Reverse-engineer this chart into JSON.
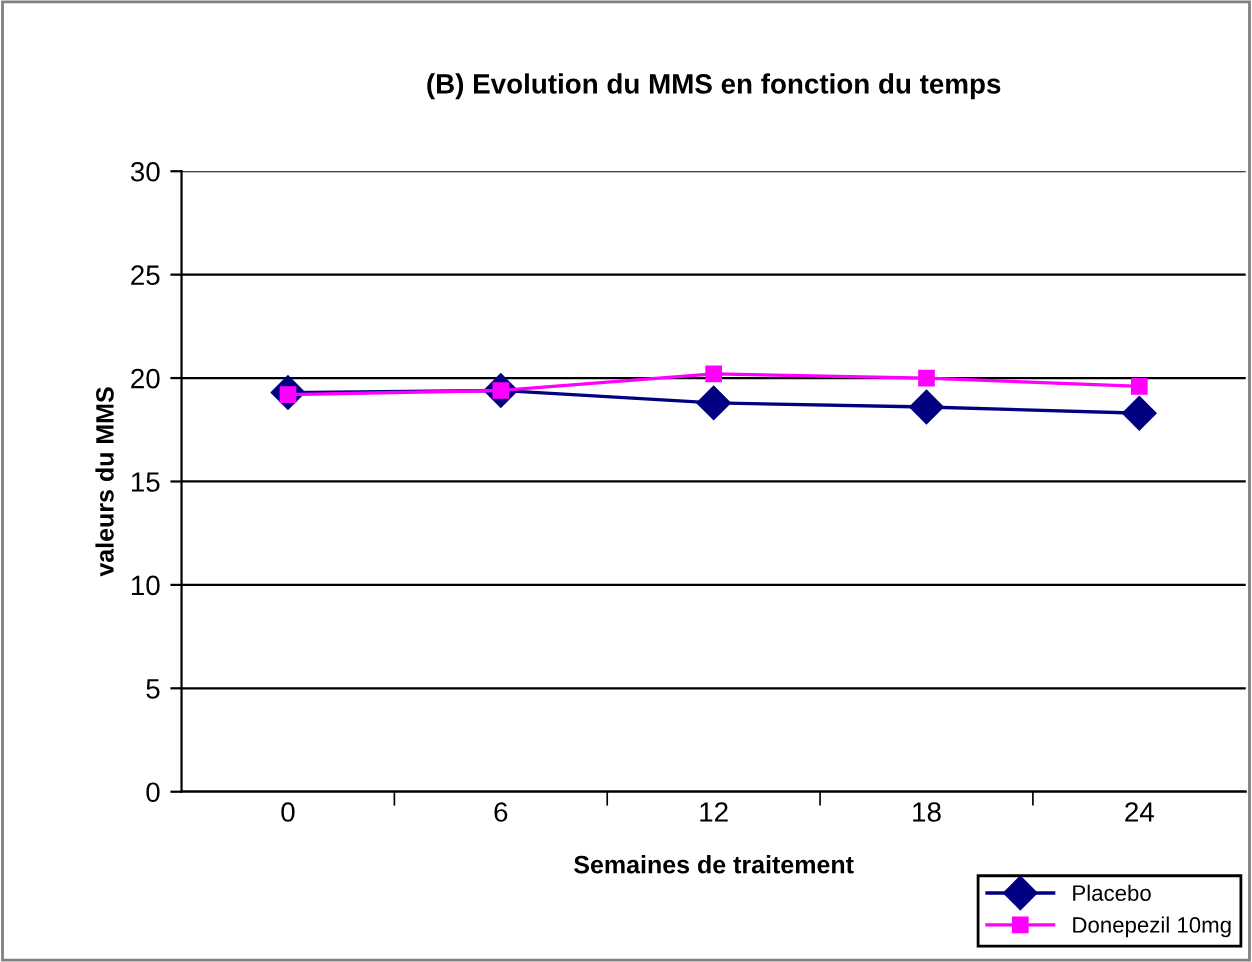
{
  "chart_data": {
    "type": "line",
    "title": "(B) Evolution du MMS en fonction du temps",
    "xlabel": "Semaines de traitement",
    "ylabel": "valeurs du MMS",
    "categories": [
      "0",
      "6",
      "12",
      "18",
      "24"
    ],
    "series": [
      {
        "name": "Placebo",
        "color": "#000080",
        "marker": "diamond",
        "values": [
          19.3,
          19.4,
          18.8,
          18.6,
          18.3
        ]
      },
      {
        "name": "Donepezil 10mg",
        "color": "#ff00ff",
        "marker": "square",
        "values": [
          19.2,
          19.4,
          20.2,
          20.0,
          19.6
        ]
      }
    ],
    "ylim": [
      0,
      30
    ],
    "yticks": [
      0,
      5,
      10,
      15,
      20,
      25,
      30
    ],
    "grid": "y",
    "legend": "bottom right"
  }
}
